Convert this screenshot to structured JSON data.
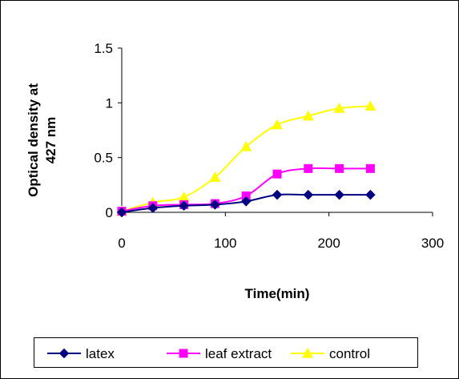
{
  "chart_data": {
    "type": "line",
    "title": "",
    "xlabel": "Time(min)",
    "ylabel_lines": [
      "Optical density at",
      "427 nm"
    ],
    "xlim": [
      0,
      300
    ],
    "ylim": [
      0,
      1.5
    ],
    "x_ticks": [
      0,
      100,
      200,
      300
    ],
    "x_tick_labels": [
      "0",
      "100",
      "200",
      "300"
    ],
    "y_ticks": [
      0,
      0.5,
      1,
      1.5
    ],
    "y_tick_labels": [
      "0",
      "0.5",
      "1",
      "1.5"
    ],
    "grid": false,
    "legend_position": "bottom",
    "x": [
      0,
      30,
      60,
      90,
      120,
      150,
      180,
      210,
      240
    ],
    "series": [
      {
        "name": "latex",
        "color": "#000080",
        "marker": "diamond",
        "values": [
          0.0,
          0.04,
          0.06,
          0.07,
          0.1,
          0.16,
          0.16,
          0.16,
          0.16
        ]
      },
      {
        "name": "leaf extract",
        "color": "#ff00ff",
        "marker": "square",
        "values": [
          0.01,
          0.06,
          0.07,
          0.08,
          0.15,
          0.35,
          0.4,
          0.4,
          0.4
        ]
      },
      {
        "name": "control",
        "color": "#ffff00",
        "marker": "triangle",
        "values": [
          0.01,
          0.09,
          0.14,
          0.32,
          0.6,
          0.8,
          0.88,
          0.95,
          0.97
        ]
      }
    ]
  }
}
